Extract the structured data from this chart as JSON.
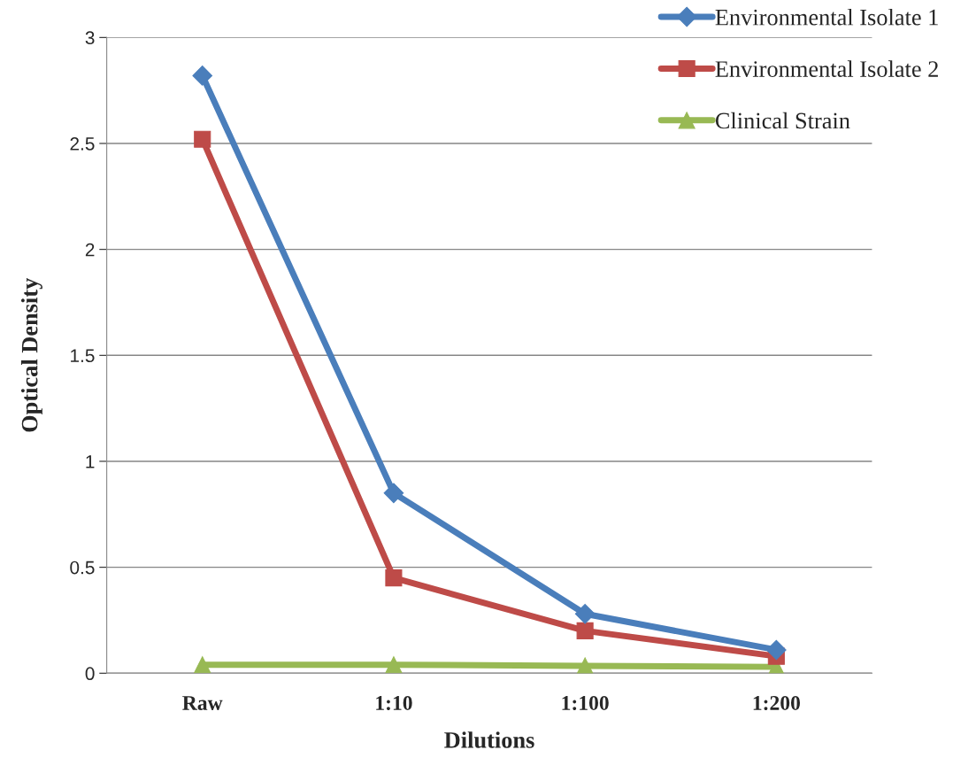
{
  "chart_data": {
    "type": "line",
    "xlabel": "Dilutions",
    "ylabel": "Optical Density",
    "categories": [
      "Raw",
      "1:10",
      "1:100",
      "1:200"
    ],
    "series": [
      {
        "name": "Environmental Isolate 1",
        "color": "#4a7ebb",
        "marker": "diamond",
        "values": [
          2.82,
          0.85,
          0.28,
          0.11
        ]
      },
      {
        "name": "Environmental Isolate 2",
        "color": "#be4b48",
        "marker": "square",
        "values": [
          2.52,
          0.45,
          0.2,
          0.08
        ]
      },
      {
        "name": "Clinical Strain",
        "color": "#98b954",
        "marker": "triangle",
        "values": [
          0.04,
          0.04,
          0.035,
          0.03
        ]
      }
    ],
    "ylim": [
      0,
      3
    ],
    "yticks": [
      0,
      0.5,
      1,
      1.5,
      2,
      2.5,
      3
    ],
    "grid": "y",
    "legend": "top right",
    "line_style": "solid"
  }
}
